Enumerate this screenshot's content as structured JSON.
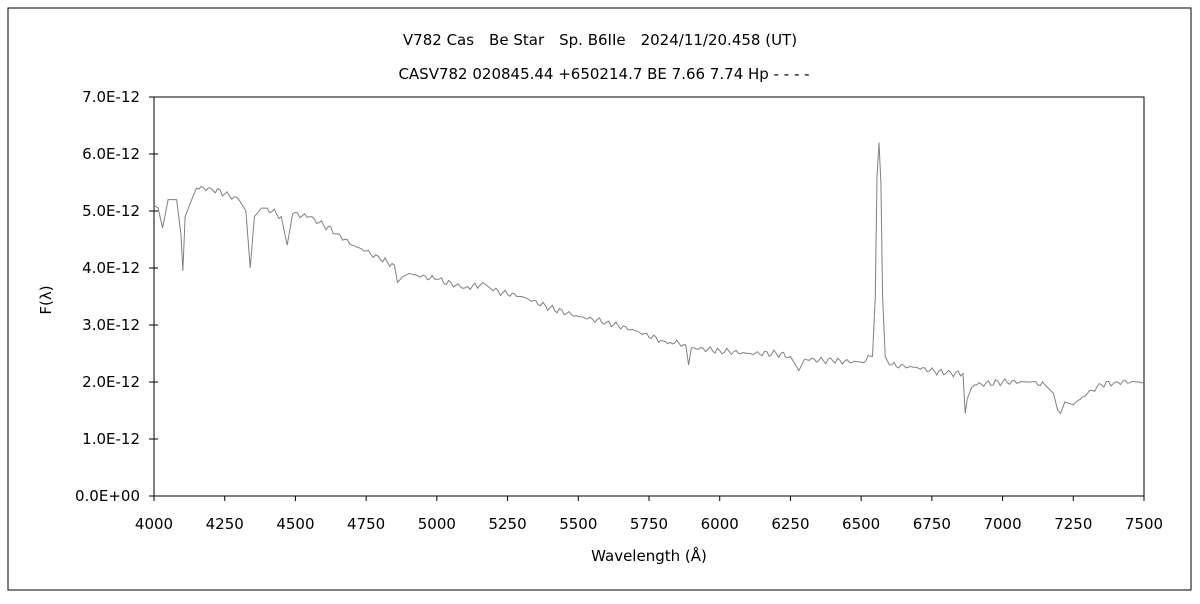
{
  "chart_data": {
    "type": "line",
    "title": "V782 Cas　Be Star　Sp. B6IIe　2024/11/20.458 (UT)",
    "subtitle": "CASV782 020845.44 +650214.7 BE 7.66 7.74 Hp - - - -",
    "xlabel": "Wavelength (Å)",
    "ylabel": "F(λ)",
    "xlim": [
      4000,
      7500
    ],
    "ylim": [
      0,
      7e-12
    ],
    "xticks": [
      "4000",
      "4250",
      "4500",
      "4750",
      "5000",
      "5250",
      "5500",
      "5750",
      "6000",
      "6250",
      "6500",
      "6750",
      "7000",
      "7250",
      "7500"
    ],
    "yticks": [
      "0.0E+00",
      "1.0E-12",
      "2.0E-12",
      "3.0E-12",
      "4.0E-12",
      "5.0E-12",
      "6.0E-12",
      "7.0E-12"
    ],
    "grid": false,
    "line_color": "#808080",
    "series": [
      {
        "x": [
          4000,
          4015,
          4030,
          4050,
          4080,
          4095,
          4102,
          4110,
          4125,
          4150,
          4200,
          4250,
          4300,
          4325,
          4340,
          4355,
          4380,
          4400,
          4450,
          4471,
          4490,
          4550,
          4600,
          4650,
          4700,
          4750,
          4800,
          4850,
          4861,
          4880,
          4900,
          5000,
          5100,
          5170,
          5200,
          5300,
          5400,
          5500,
          5600,
          5700,
          5800,
          5880,
          5890,
          5900,
          6000,
          6100,
          6200,
          6250,
          6280,
          6300,
          6400,
          6500,
          6540,
          6550,
          6556,
          6563,
          6570,
          6576,
          6585,
          6600,
          6700,
          6800,
          6860,
          6868,
          6875,
          6890,
          6900,
          7000,
          7100,
          7150,
          7180,
          7195,
          7205,
          7220,
          7250,
          7300,
          7350,
          7400,
          7500
        ],
        "y": [
          5.1e-12,
          5.05e-12,
          4.7e-12,
          5.2e-12,
          5.2e-12,
          4.6e-12,
          3.95e-12,
          4.9e-12,
          5.1e-12,
          5.4e-12,
          5.4e-12,
          5.3e-12,
          5.2e-12,
          5e-12,
          4e-12,
          4.9e-12,
          5.05e-12,
          5.05e-12,
          4.9e-12,
          4.4e-12,
          4.95e-12,
          4.9e-12,
          4.75e-12,
          4.6e-12,
          4.4e-12,
          4.3e-12,
          4.15e-12,
          4.05e-12,
          3.75e-12,
          3.85e-12,
          3.9e-12,
          3.8e-12,
          3.65e-12,
          3.72e-12,
          3.6e-12,
          3.5e-12,
          3.3e-12,
          3.15e-12,
          3.05e-12,
          2.9e-12,
          2.72e-12,
          2.65e-12,
          2.3e-12,
          2.6e-12,
          2.55e-12,
          2.5e-12,
          2.5e-12,
          2.45e-12,
          2.2e-12,
          2.4e-12,
          2.37e-12,
          2.35e-12,
          2.45e-12,
          3.5e-12,
          5.6e-12,
          6.2e-12,
          5.5e-12,
          3.5e-12,
          2.45e-12,
          2.3e-12,
          2.25e-12,
          2.15e-12,
          2.15e-12,
          1.45e-12,
          1.7e-12,
          1.9e-12,
          1.95e-12,
          2e-12,
          2e-12,
          1.95e-12,
          1.8e-12,
          1.5e-12,
          1.45e-12,
          1.65e-12,
          1.6e-12,
          1.8e-12,
          1.95e-12,
          2e-12,
          2e-12
        ]
      }
    ]
  }
}
